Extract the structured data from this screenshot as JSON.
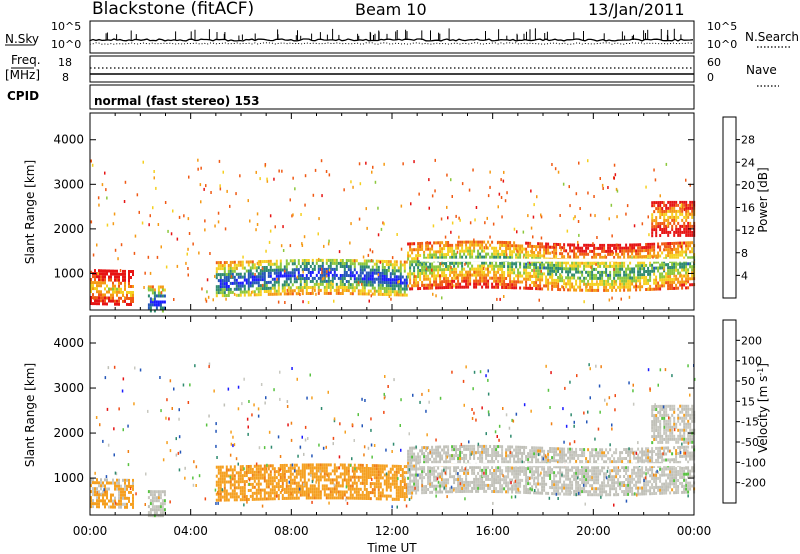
{
  "header": {
    "title": "Blackstone (fitACF)",
    "beam": "Beam 10",
    "date": "13/Jan/2011"
  },
  "noise_panel": {
    "left_label": "N.Sky",
    "right_label": "N.Search",
    "left_ticks": [
      "10^5",
      "10^0"
    ],
    "right_ticks": [
      "10^5",
      "10^0"
    ]
  },
  "freq_panel": {
    "left_label_1": "Freq.",
    "left_label_2": "[MHz]",
    "right_label": "Nave",
    "left_ticks": [
      "18",
      "8"
    ],
    "right_ticks": [
      "60",
      "0"
    ]
  },
  "cpid": {
    "label": "CPID",
    "value": "normal (fast stereo) 153"
  },
  "colors": {
    "power_scale": [
      "#1a1aff",
      "#2456b8",
      "#2e8a6e",
      "#8cc83c",
      "#f5d020",
      "#f59a14",
      "#f05a14",
      "#e61414"
    ],
    "velocity_scale": [
      "#1a1aff",
      "#2456b8",
      "#2e8a6e",
      "#58c240",
      "#c8c8c0",
      "#f5a020",
      "#f08014",
      "#f04a14",
      "#e61414"
    ],
    "ground_scatter": "#c0c0b8"
  },
  "chart_data": [
    {
      "type": "heatmap",
      "title": "Power",
      "xlabel": "Time UT",
      "ylabel": "Slant Range [km]",
      "xlim": [
        0,
        24
      ],
      "ylim": [
        180,
        4600
      ],
      "x_ticks": [
        "00:00",
        "04:00",
        "08:00",
        "12:00",
        "16:00",
        "20:00",
        "00:00"
      ],
      "y_ticks": [
        1000,
        2000,
        3000,
        4000
      ],
      "colorbar": {
        "label": "Power [dB]",
        "tick_labels": [
          "28",
          "24",
          "20",
          "16",
          "12",
          "8",
          "4"
        ],
        "range": [
          0,
          32
        ]
      },
      "echo_regions": [
        {
          "t_start": 0.0,
          "t_end": 1.7,
          "range_low": 350,
          "range_high": 1100,
          "value": 7
        },
        {
          "t_start": 2.3,
          "t_end": 3.0,
          "range_low": 180,
          "range_high": 750,
          "value": 24
        },
        {
          "t_start": 5.0,
          "t_end": 12.6,
          "range_low": 550,
          "range_high": 1300,
          "value": 22
        },
        {
          "t_start": 12.6,
          "t_end": 24.0,
          "range_low": 650,
          "range_high": 1700,
          "value": 14
        },
        {
          "t_start": 22.3,
          "t_end": 24.0,
          "range_low": 1800,
          "range_high": 2600,
          "value": 6
        }
      ]
    },
    {
      "type": "heatmap",
      "title": "Velocity",
      "xlabel": "Time UT",
      "ylabel": "Slant Range [km]",
      "xlim": [
        0,
        24
      ],
      "ylim": [
        180,
        4600
      ],
      "x_ticks": [
        "00:00",
        "04:00",
        "08:00",
        "12:00",
        "16:00",
        "20:00",
        "00:00"
      ],
      "y_ticks": [
        1000,
        2000,
        3000,
        4000
      ],
      "colorbar": {
        "label": "Velocity [m s^-1]",
        "tick_labels": [
          "200",
          "100",
          "50",
          "15",
          "-15",
          "-50",
          "-100",
          "-200"
        ],
        "range": [
          -250,
          250
        ]
      },
      "echo_regions": [
        {
          "t_start": 0.0,
          "t_end": 1.7,
          "range_low": 400,
          "range_high": 1000,
          "value": -40
        },
        {
          "t_start": 2.3,
          "t_end": 3.0,
          "range_low": 180,
          "range_high": 750,
          "value": 0
        },
        {
          "t_start": 5.0,
          "t_end": 12.6,
          "range_low": 550,
          "range_high": 1300,
          "value": -60
        },
        {
          "t_start": 12.6,
          "t_end": 24.0,
          "range_low": 650,
          "range_high": 1700,
          "value": 0
        },
        {
          "t_start": 22.3,
          "t_end": 24.0,
          "range_low": 1800,
          "range_high": 2600,
          "value": 0
        }
      ]
    }
  ]
}
